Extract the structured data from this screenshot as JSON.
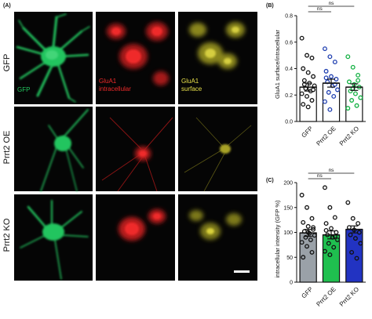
{
  "panel_a": {
    "label": "(A)",
    "rows": [
      "GFP",
      "Prrt2 OE",
      "Prrt2 KO"
    ],
    "channel_labels": {
      "gfp": "GFP",
      "intracellular": [
        "GluA1",
        "intracellular"
      ],
      "surface": [
        "GluA1",
        "surface"
      ]
    },
    "colors": {
      "gfp": "#22c55e",
      "intracellular": "#ef2a2a",
      "surface": "#e8e04a"
    }
  },
  "chart_data": [
    {
      "panel": "(B)",
      "type": "bar",
      "categories": [
        "GFP",
        "Prrt2 OE",
        "Prrt2 KO"
      ],
      "values": [
        0.26,
        0.29,
        0.26
      ],
      "errors": [
        0.03,
        0.03,
        0.025
      ],
      "ylabel": "GluA1 surface/intracellular",
      "ylim": [
        0,
        0.8
      ],
      "yticks": [
        "0.0",
        "0.2",
        "0.4",
        "0.6",
        "0.8"
      ],
      "significance": [
        "ns",
        "ns"
      ],
      "bar_fill": "#ffffff",
      "point_colors": [
        "#111111",
        "#1f3fb0",
        "#10b040"
      ],
      "points": [
        [
          0.63,
          0.5,
          0.48,
          0.4,
          0.37,
          0.34,
          0.31,
          0.29,
          0.27,
          0.25,
          0.23,
          0.21,
          0.19,
          0.16,
          0.13,
          0.11,
          0.24,
          0.28
        ],
        [
          0.55,
          0.49,
          0.45,
          0.38,
          0.34,
          0.32,
          0.3,
          0.27,
          0.24,
          0.22,
          0.19,
          0.15,
          0.09,
          0.28,
          0.33
        ],
        [
          0.49,
          0.41,
          0.35,
          0.3,
          0.28,
          0.26,
          0.23,
          0.21,
          0.18,
          0.16,
          0.12,
          0.1,
          0.25,
          0.31
        ]
      ]
    },
    {
      "panel": "(C)",
      "type": "bar",
      "categories": [
        "GFP",
        "Prrt2 OE",
        "Prrt2 KO"
      ],
      "values": [
        99,
        95,
        106
      ],
      "errors": [
        7,
        8,
        7
      ],
      "ylabel": "intracellular intensity (GFP %)",
      "ylim": [
        0,
        200
      ],
      "yticks": [
        "0",
        "50",
        "100",
        "150",
        "200"
      ],
      "significance": [
        "ns",
        "ns"
      ],
      "bar_colors": [
        "#9aa1a8",
        "#1fbf4f",
        "#2233c2"
      ],
      "point_color": "#111111",
      "points": [
        [
          175,
          150,
          128,
          120,
          112,
          106,
          102,
          98,
          94,
          90,
          85,
          80,
          72,
          60,
          50,
          100,
          110
        ],
        [
          190,
          150,
          130,
          118,
          108,
          100,
          95,
          90,
          85,
          78,
          70,
          62,
          55,
          92,
          104
        ],
        [
          160,
          128,
          118,
          110,
          105,
          100,
          95,
          88,
          78,
          60,
          48
        ]
      ]
    }
  ]
}
